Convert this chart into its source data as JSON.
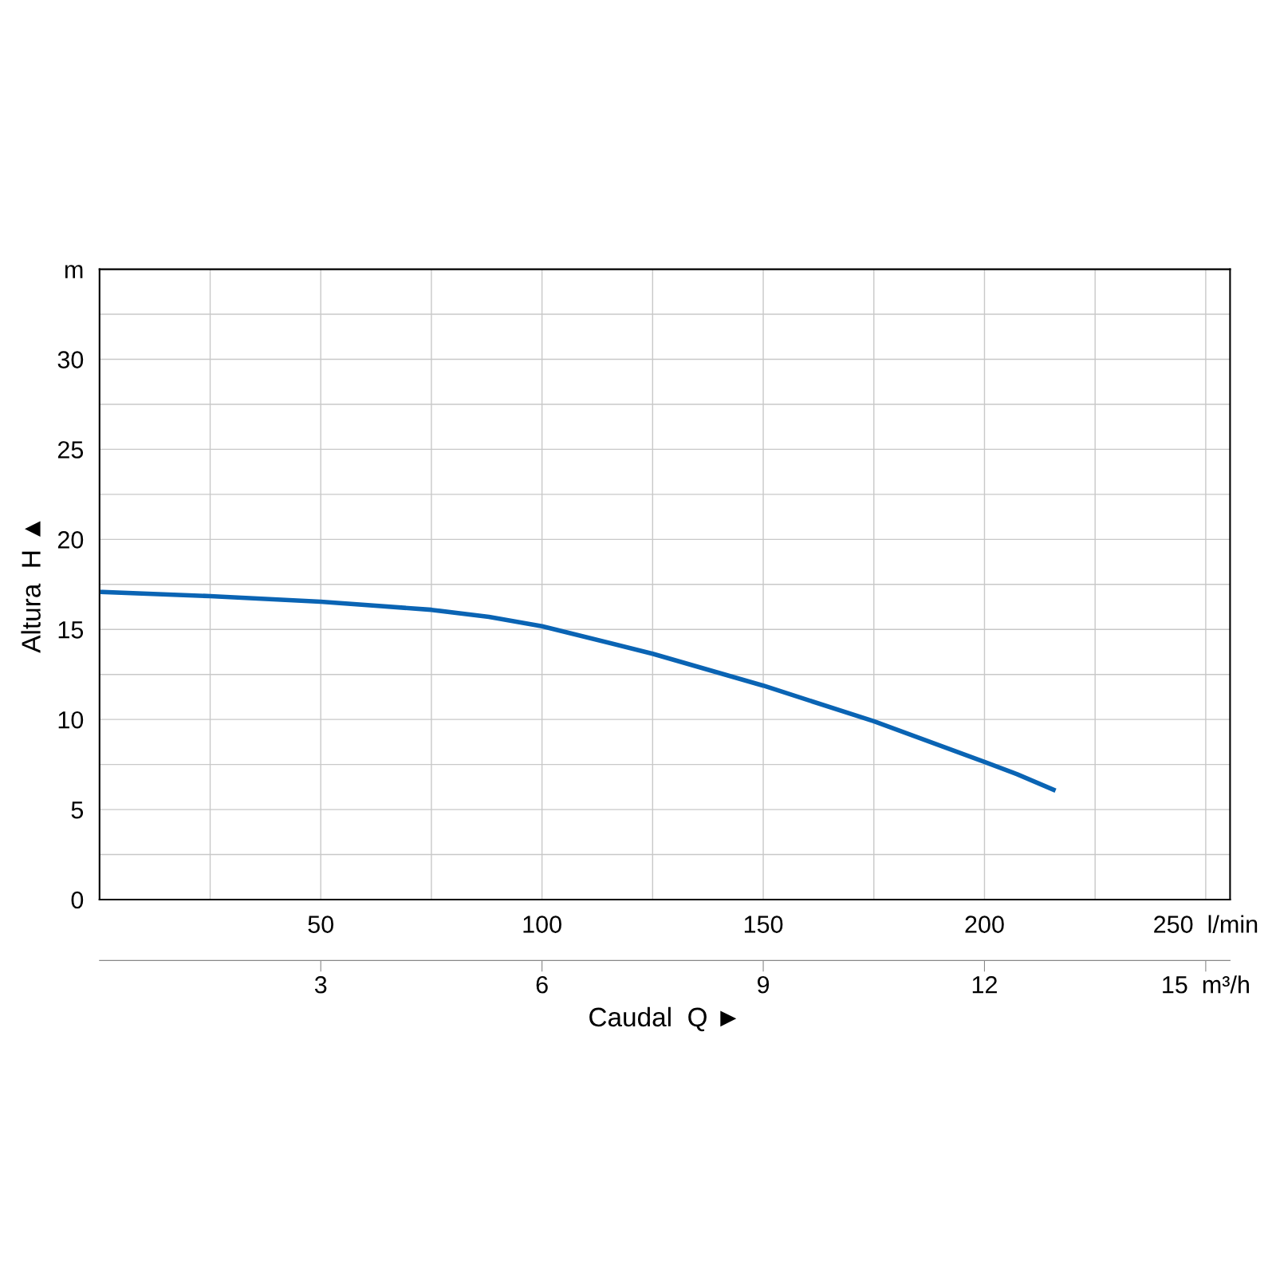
{
  "chart_data": {
    "type": "line",
    "xlabel": null,
    "ylabel": "Altura  H ▲",
    "x2label": "Caudal  Q ►",
    "x": [
      0.7,
      25,
      50,
      75,
      88,
      100,
      125,
      150,
      175,
      200,
      207.4,
      215.6
    ],
    "series": [
      {
        "color": "#0a64b4",
        "values": [
          17.08,
          16.85,
          16.54,
          16.09,
          15.7,
          15.18,
          13.65,
          11.88,
          9.9,
          7.64,
          6.96,
          6.1
        ]
      }
    ],
    "xlim": [
      0,
      255.5
    ],
    "ylim": [
      0,
      35
    ],
    "xticks": [
      {
        "value": 0,
        "label": null
      },
      {
        "value": 25,
        "label": null
      },
      50,
      {
        "value": 75,
        "label": null
      },
      100,
      {
        "value": 125,
        "label": null
      },
      150,
      {
        "value": 175,
        "label": null
      },
      200,
      {
        "value": 225,
        "label": null
      },
      {
        "value": 250,
        "label": "250  l/min"
      }
    ],
    "yticks": [
      0,
      {
        "value": 2.5,
        "label": null
      },
      5,
      {
        "value": 7.5,
        "label": null
      },
      10,
      {
        "value": 12.5,
        "label": null
      },
      15,
      {
        "value": 17.5,
        "label": null
      },
      20,
      {
        "value": 22.5,
        "label": null
      },
      25,
      {
        "value": 27.5,
        "label": null
      },
      30,
      {
        "value": 32.5,
        "label": null
      },
      {
        "value": 35,
        "label": "m"
      }
    ],
    "x2lim": [
      0,
      15.33
    ],
    "x2ticks": [
      3,
      6,
      9,
      12,
      {
        "value": 15,
        "label": "15  m³/h"
      }
    ],
    "grid": true,
    "line_style": "solid",
    "marker": "none"
  }
}
